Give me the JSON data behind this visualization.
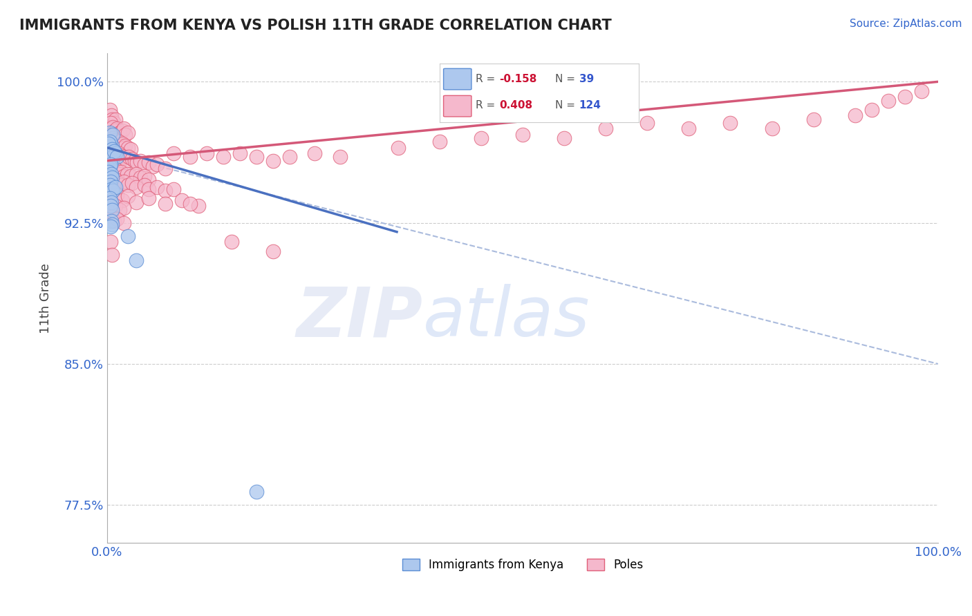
{
  "title": "IMMIGRANTS FROM KENYA VS POLISH 11TH GRADE CORRELATION CHART",
  "source": "Source: ZipAtlas.com",
  "ylabel": "11th Grade",
  "xlim": [
    0.0,
    100.0
  ],
  "ylim": [
    75.5,
    101.5
  ],
  "yticks": [
    77.5,
    85.0,
    92.5,
    100.0
  ],
  "xticks": [
    0.0,
    100.0
  ],
  "xtick_labels": [
    "0.0%",
    "100.0%"
  ],
  "ytick_labels": [
    "77.5%",
    "85.0%",
    "92.5%",
    "100.0%"
  ],
  "blue_r": "-0.158",
  "blue_n": "39",
  "pink_r": "0.408",
  "pink_n": "124",
  "blue_color": "#adc8ee",
  "pink_color": "#f5b8cc",
  "blue_edge_color": "#5b8dd4",
  "pink_edge_color": "#e0607a",
  "blue_line_color": "#4a70c0",
  "pink_line_color": "#d45878",
  "dashed_line_color": "#aabbdd",
  "background_color": "#ffffff",
  "watermark_zip": "ZIP",
  "watermark_atlas": "atlas",
  "blue_line": [
    [
      0,
      96.5
    ],
    [
      35,
      92.0
    ]
  ],
  "pink_line": [
    [
      0,
      95.8
    ],
    [
      100,
      100.0
    ]
  ],
  "dashed_line": [
    [
      0,
      96.2
    ],
    [
      100,
      85.0
    ]
  ],
  "blue_scatter": [
    [
      0.3,
      97.3
    ],
    [
      0.7,
      97.2
    ],
    [
      0.4,
      96.5
    ],
    [
      0.5,
      96.3
    ],
    [
      0.6,
      96.6
    ],
    [
      0.3,
      96.8
    ],
    [
      0.2,
      96.7
    ],
    [
      0.4,
      96.2
    ],
    [
      0.5,
      96.0
    ],
    [
      0.6,
      96.4
    ],
    [
      0.8,
      96.1
    ],
    [
      1.0,
      96.2
    ],
    [
      0.3,
      95.8
    ],
    [
      0.4,
      95.7
    ],
    [
      0.5,
      95.9
    ],
    [
      0.7,
      96.0
    ],
    [
      0.8,
      96.3
    ],
    [
      1.2,
      96.0
    ],
    [
      0.3,
      95.5
    ],
    [
      0.4,
      95.6
    ],
    [
      0.2,
      95.2
    ],
    [
      0.3,
      95.0
    ],
    [
      0.5,
      95.1
    ],
    [
      0.6,
      94.9
    ],
    [
      0.4,
      94.7
    ],
    [
      0.3,
      94.5
    ],
    [
      0.5,
      94.3
    ],
    [
      0.7,
      94.2
    ],
    [
      1.0,
      94.4
    ],
    [
      0.3,
      93.8
    ],
    [
      0.5,
      93.6
    ],
    [
      0.4,
      93.4
    ],
    [
      0.6,
      93.2
    ],
    [
      0.5,
      92.6
    ],
    [
      0.6,
      92.4
    ],
    [
      0.4,
      92.3
    ],
    [
      2.5,
      91.8
    ],
    [
      3.5,
      90.5
    ],
    [
      18.0,
      78.2
    ]
  ],
  "pink_scatter": [
    [
      0.3,
      98.5
    ],
    [
      0.5,
      98.2
    ],
    [
      0.6,
      98.0
    ],
    [
      0.8,
      97.8
    ],
    [
      1.0,
      98.0
    ],
    [
      0.4,
      97.8
    ],
    [
      0.6,
      97.5
    ],
    [
      0.7,
      97.6
    ],
    [
      0.9,
      97.4
    ],
    [
      1.2,
      97.5
    ],
    [
      1.5,
      97.3
    ],
    [
      1.8,
      97.4
    ],
    [
      2.0,
      97.5
    ],
    [
      2.2,
      97.2
    ],
    [
      2.5,
      97.3
    ],
    [
      0.3,
      97.2
    ],
    [
      0.4,
      97.0
    ],
    [
      0.5,
      97.1
    ],
    [
      0.6,
      96.9
    ],
    [
      0.7,
      97.0
    ],
    [
      0.8,
      96.8
    ],
    [
      1.0,
      96.9
    ],
    [
      1.2,
      96.7
    ],
    [
      1.4,
      96.8
    ],
    [
      1.6,
      96.6
    ],
    [
      1.8,
      96.7
    ],
    [
      2.0,
      96.5
    ],
    [
      2.2,
      96.6
    ],
    [
      2.5,
      96.5
    ],
    [
      2.8,
      96.4
    ],
    [
      0.5,
      96.3
    ],
    [
      0.6,
      96.2
    ],
    [
      0.8,
      96.3
    ],
    [
      1.0,
      96.1
    ],
    [
      1.2,
      96.0
    ],
    [
      1.4,
      96.2
    ],
    [
      1.6,
      96.1
    ],
    [
      1.8,
      95.9
    ],
    [
      2.0,
      96.0
    ],
    [
      2.3,
      95.8
    ],
    [
      2.6,
      96.0
    ],
    [
      3.0,
      95.9
    ],
    [
      3.3,
      95.8
    ],
    [
      3.6,
      95.7
    ],
    [
      4.0,
      95.8
    ],
    [
      4.5,
      95.6
    ],
    [
      5.0,
      95.7
    ],
    [
      5.5,
      95.5
    ],
    [
      6.0,
      95.6
    ],
    [
      7.0,
      95.4
    ],
    [
      0.3,
      95.5
    ],
    [
      0.5,
      95.3
    ],
    [
      0.7,
      95.4
    ],
    [
      0.9,
      95.2
    ],
    [
      1.1,
      95.3
    ],
    [
      1.4,
      95.1
    ],
    [
      1.7,
      95.2
    ],
    [
      2.0,
      95.0
    ],
    [
      2.4,
      95.1
    ],
    [
      2.8,
      95.0
    ],
    [
      3.5,
      95.1
    ],
    [
      4.0,
      94.9
    ],
    [
      4.5,
      95.0
    ],
    [
      5.0,
      94.8
    ],
    [
      0.4,
      94.8
    ],
    [
      0.6,
      94.7
    ],
    [
      0.8,
      94.6
    ],
    [
      1.0,
      94.8
    ],
    [
      1.3,
      94.6
    ],
    [
      1.6,
      94.5
    ],
    [
      2.0,
      94.7
    ],
    [
      2.5,
      94.5
    ],
    [
      3.0,
      94.6
    ],
    [
      3.5,
      94.4
    ],
    [
      4.5,
      94.5
    ],
    [
      5.0,
      94.3
    ],
    [
      6.0,
      94.4
    ],
    [
      7.0,
      94.2
    ],
    [
      8.0,
      94.3
    ],
    [
      0.5,
      94.0
    ],
    [
      0.8,
      93.8
    ],
    [
      1.2,
      94.0
    ],
    [
      1.8,
      93.7
    ],
    [
      2.5,
      93.9
    ],
    [
      3.5,
      93.6
    ],
    [
      5.0,
      93.8
    ],
    [
      7.0,
      93.5
    ],
    [
      9.0,
      93.7
    ],
    [
      11.0,
      93.4
    ],
    [
      0.4,
      93.5
    ],
    [
      0.7,
      93.3
    ],
    [
      1.0,
      93.4
    ],
    [
      1.5,
      93.2
    ],
    [
      2.0,
      93.3
    ],
    [
      0.5,
      92.8
    ],
    [
      0.8,
      92.6
    ],
    [
      1.2,
      92.7
    ],
    [
      2.0,
      92.5
    ],
    [
      8.0,
      96.2
    ],
    [
      10.0,
      96.0
    ],
    [
      12.0,
      96.2
    ],
    [
      14.0,
      96.0
    ],
    [
      16.0,
      96.2
    ],
    [
      18.0,
      96.0
    ],
    [
      20.0,
      95.8
    ],
    [
      22.0,
      96.0
    ],
    [
      25.0,
      96.2
    ],
    [
      28.0,
      96.0
    ],
    [
      35.0,
      96.5
    ],
    [
      40.0,
      96.8
    ],
    [
      45.0,
      97.0
    ],
    [
      50.0,
      97.2
    ],
    [
      55.0,
      97.0
    ],
    [
      60.0,
      97.5
    ],
    [
      65.0,
      97.8
    ],
    [
      70.0,
      97.5
    ],
    [
      75.0,
      97.8
    ],
    [
      80.0,
      97.5
    ],
    [
      85.0,
      98.0
    ],
    [
      90.0,
      98.2
    ],
    [
      92.0,
      98.5
    ],
    [
      94.0,
      99.0
    ],
    [
      96.0,
      99.2
    ],
    [
      98.0,
      99.5
    ],
    [
      10.0,
      93.5
    ],
    [
      15.0,
      91.5
    ],
    [
      20.0,
      91.0
    ],
    [
      0.4,
      91.5
    ],
    [
      0.6,
      90.8
    ]
  ]
}
